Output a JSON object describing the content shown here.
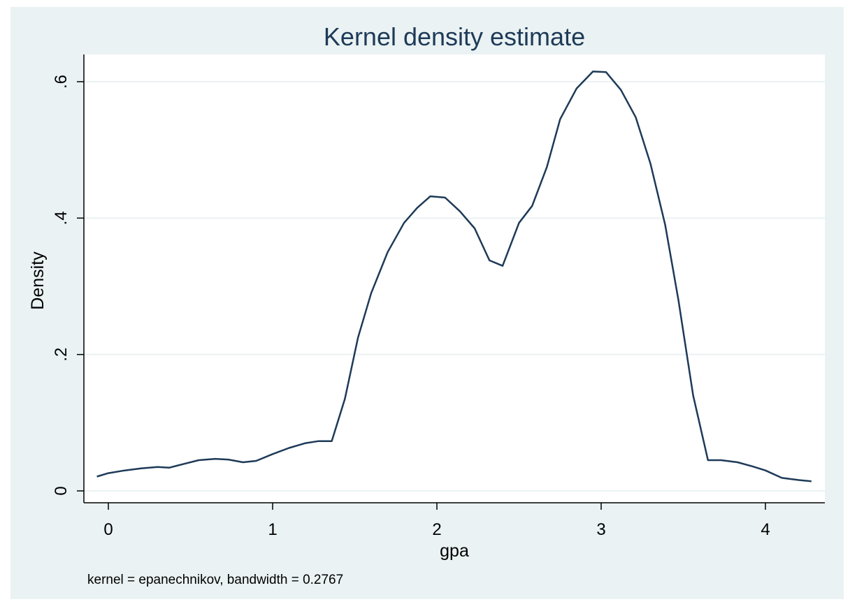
{
  "chart_data": {
    "type": "line",
    "title": "Kernel density estimate",
    "xlabel": "gpa",
    "ylabel": "Density",
    "note": "kernel = epanechnikov, bandwidth = 0.2767",
    "xlim": [
      -0.15,
      4.35
    ],
    "ylim": [
      0,
      0.63
    ],
    "xticks": [
      0,
      1,
      2,
      3,
      4
    ],
    "xtick_labels": [
      "0",
      "1",
      "2",
      "3",
      "4"
    ],
    "yticks": [
      0,
      0.2,
      0.4,
      0.6
    ],
    "ytick_labels": [
      "0",
      ".2",
      ".4",
      ".6"
    ],
    "grid": true,
    "colors": {
      "background": "#eaf2f3",
      "plot_area": "#ffffff",
      "line": "#1e3a58",
      "grid": "#eaf2f3"
    },
    "series": [
      {
        "x": [
          -0.07,
          0.0,
          0.1,
          0.2,
          0.3,
          0.37,
          0.45,
          0.55,
          0.65,
          0.73,
          0.82,
          0.9,
          1.0,
          1.1,
          1.2,
          1.28,
          1.36,
          1.44,
          1.52,
          1.6,
          1.7,
          1.8,
          1.88,
          1.96,
          2.05,
          2.14,
          2.23,
          2.32,
          2.4,
          2.5,
          2.58,
          2.67,
          2.75,
          2.85,
          2.95,
          3.03,
          3.12,
          3.21,
          3.3,
          3.39,
          3.47,
          3.56,
          3.65,
          3.73,
          3.83,
          3.92,
          4.0,
          4.1,
          4.2,
          4.28
        ],
        "y": [
          0.021,
          0.026,
          0.03,
          0.033,
          0.035,
          0.034,
          0.039,
          0.045,
          0.047,
          0.046,
          0.042,
          0.044,
          0.054,
          0.063,
          0.07,
          0.073,
          0.073,
          0.135,
          0.225,
          0.29,
          0.35,
          0.393,
          0.415,
          0.432,
          0.43,
          0.41,
          0.385,
          0.338,
          0.33,
          0.393,
          0.418,
          0.475,
          0.545,
          0.59,
          0.615,
          0.614,
          0.588,
          0.548,
          0.48,
          0.39,
          0.28,
          0.14,
          0.045,
          0.045,
          0.042,
          0.036,
          0.03,
          0.019,
          0.016,
          0.014
        ]
      }
    ]
  }
}
